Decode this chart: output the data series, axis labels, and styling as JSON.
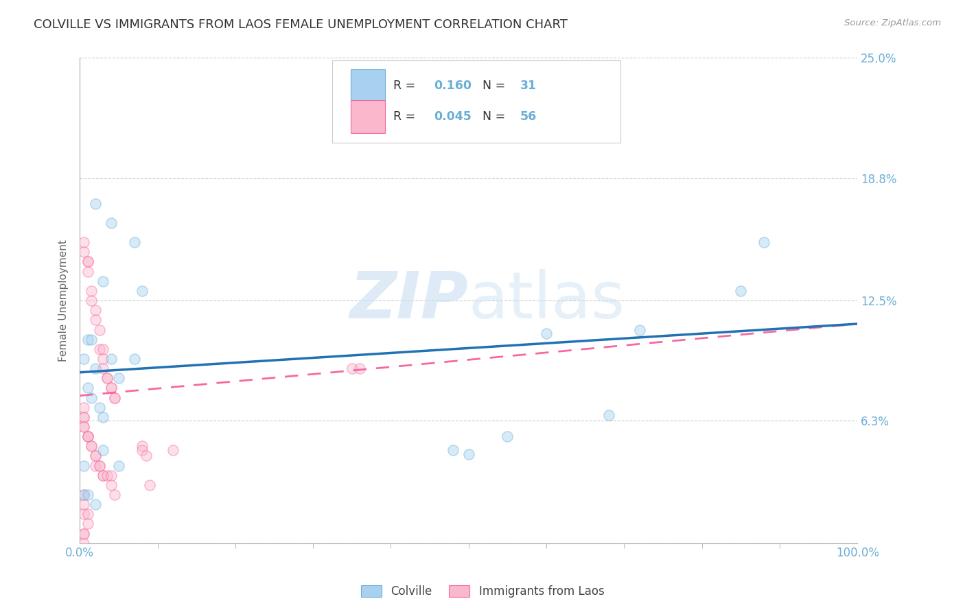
{
  "title": "COLVILLE VS IMMIGRANTS FROM LAOS FEMALE UNEMPLOYMENT CORRELATION CHART",
  "source": "Source: ZipAtlas.com",
  "ylabel": "Female Unemployment",
  "xlim": [
    0,
    1.0
  ],
  "ylim": [
    0,
    0.25
  ],
  "yticks": [
    0.0,
    0.063,
    0.125,
    0.188,
    0.25
  ],
  "ytick_labels": [
    "",
    "6.3%",
    "12.5%",
    "18.8%",
    "25.0%"
  ],
  "xtick_positions": [
    0.0,
    1.0
  ],
  "xtick_labels": [
    "0.0%",
    "100.0%"
  ],
  "legend_label_blue": "Colville",
  "legend_label_pink": "Immigrants from Laos",
  "blue_color": "#a8d1f0",
  "pink_color": "#f9b8cc",
  "blue_edge_color": "#6baed6",
  "pink_edge_color": "#f768a1",
  "blue_trend_color": "#2171b5",
  "pink_trend_color": "#f768a1",
  "watermark_zip": "ZIP",
  "watermark_atlas": "atlas",
  "blue_scatter_x": [
    0.38,
    0.02,
    0.04,
    0.07,
    0.03,
    0.01,
    0.015,
    0.005,
    0.04,
    0.07,
    0.02,
    0.05,
    0.08,
    0.03,
    0.48,
    0.5,
    0.55,
    0.6,
    0.68,
    0.72,
    0.85,
    0.88,
    0.01,
    0.015,
    0.025,
    0.03,
    0.05,
    0.005,
    0.01,
    0.02,
    0.005
  ],
  "blue_scatter_y": [
    0.235,
    0.175,
    0.165,
    0.155,
    0.135,
    0.105,
    0.105,
    0.095,
    0.095,
    0.095,
    0.09,
    0.085,
    0.13,
    0.048,
    0.048,
    0.046,
    0.055,
    0.108,
    0.066,
    0.11,
    0.13,
    0.155,
    0.08,
    0.075,
    0.07,
    0.065,
    0.04,
    0.025,
    0.025,
    0.02,
    0.04
  ],
  "pink_scatter_x": [
    0.005,
    0.005,
    0.01,
    0.01,
    0.01,
    0.015,
    0.015,
    0.02,
    0.02,
    0.025,
    0.025,
    0.03,
    0.03,
    0.03,
    0.035,
    0.035,
    0.04,
    0.04,
    0.045,
    0.045,
    0.005,
    0.005,
    0.005,
    0.005,
    0.005,
    0.01,
    0.01,
    0.01,
    0.015,
    0.015,
    0.02,
    0.02,
    0.02,
    0.025,
    0.025,
    0.03,
    0.03,
    0.035,
    0.04,
    0.04,
    0.045,
    0.08,
    0.08,
    0.085,
    0.09,
    0.12,
    0.35,
    0.36,
    0.005,
    0.005,
    0.005,
    0.01,
    0.01,
    0.005,
    0.005,
    0.005
  ],
  "pink_scatter_y": [
    0.155,
    0.15,
    0.145,
    0.145,
    0.14,
    0.13,
    0.125,
    0.12,
    0.115,
    0.11,
    0.1,
    0.1,
    0.095,
    0.09,
    0.085,
    0.085,
    0.08,
    0.08,
    0.075,
    0.075,
    0.07,
    0.065,
    0.065,
    0.06,
    0.06,
    0.055,
    0.055,
    0.055,
    0.05,
    0.05,
    0.045,
    0.045,
    0.04,
    0.04,
    0.04,
    0.035,
    0.035,
    0.035,
    0.035,
    0.03,
    0.025,
    0.05,
    0.048,
    0.045,
    0.03,
    0.048,
    0.09,
    0.09,
    0.025,
    0.02,
    0.015,
    0.015,
    0.01,
    0.005,
    0.005,
    0.0
  ],
  "blue_trend_x": [
    0.0,
    1.0
  ],
  "blue_trend_y": [
    0.088,
    0.113
  ],
  "pink_trend_x": [
    0.0,
    1.0
  ],
  "pink_trend_y": [
    0.076,
    0.113
  ],
  "background_color": "#ffffff",
  "grid_color": "#cccccc",
  "title_color": "#333333",
  "axis_label_color": "#666666",
  "tick_color": "#6baed6",
  "title_fontsize": 13,
  "label_fontsize": 11,
  "tick_fontsize": 12,
  "scatter_size": 120,
  "scatter_alpha": 0.45,
  "scatter_linewidth": 1.0
}
